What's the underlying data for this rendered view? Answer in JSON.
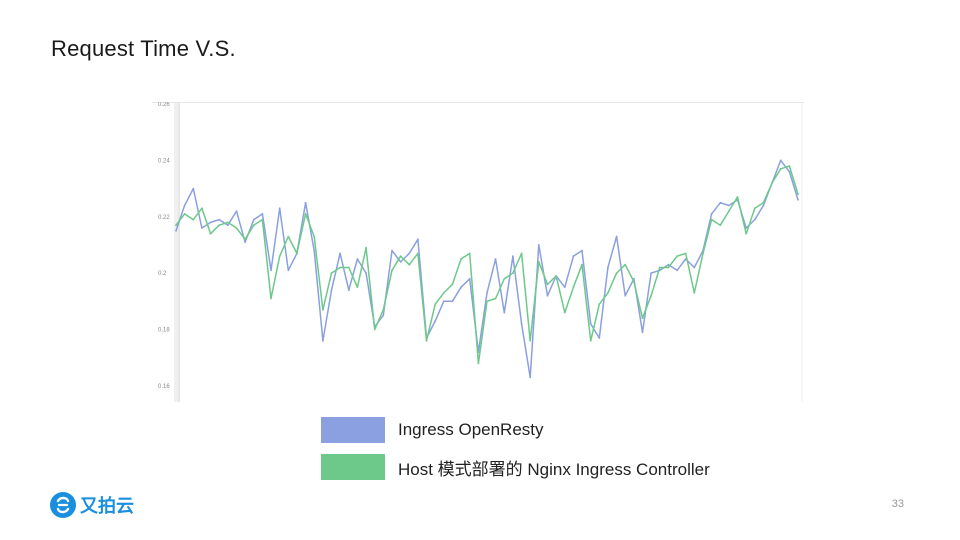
{
  "slide": {
    "title": "Request Time V.S.",
    "page_number": "33",
    "logo_text": "又拍云"
  },
  "colors": {
    "openresty": "#8aa0e0",
    "nginx": "#6cc98a",
    "logo": "#1a8fe0"
  },
  "chart_data": {
    "type": "line",
    "title": "",
    "xlabel": "",
    "ylabel": "",
    "ylim": [
      0.155,
      0.26
    ],
    "yticks": [
      0.16,
      0.18,
      0.2,
      0.22,
      0.24,
      0.26
    ],
    "ytick_labels": [
      "0.16",
      "0.18",
      "0.2",
      "0.22",
      "0.24",
      "0.26"
    ],
    "grid": false,
    "legend": "bottom",
    "series": [
      {
        "name": "Ingress OpenResty",
        "color": "#8aa0e0",
        "values": [
          0.215,
          0.224,
          0.23,
          0.216,
          0.218,
          0.219,
          0.217,
          0.222,
          0.211,
          0.219,
          0.221,
          0.201,
          0.223,
          0.201,
          0.207,
          0.225,
          0.208,
          0.176,
          0.194,
          0.207,
          0.194,
          0.205,
          0.2,
          0.181,
          0.185,
          0.208,
          0.204,
          0.207,
          0.212,
          0.177,
          0.183,
          0.19,
          0.19,
          0.195,
          0.198,
          0.172,
          0.193,
          0.205,
          0.186,
          0.206,
          0.182,
          0.163,
          0.21,
          0.192,
          0.199,
          0.195,
          0.206,
          0.208,
          0.182,
          0.177,
          0.202,
          0.213,
          0.192,
          0.198,
          0.179,
          0.2,
          0.201,
          0.203,
          0.201,
          0.205,
          0.202,
          0.208,
          0.221,
          0.225,
          0.224,
          0.226,
          0.216,
          0.219,
          0.224,
          0.232,
          0.24,
          0.236,
          0.226
        ]
      },
      {
        "name": "Host 模式部署的 Nginx Ingress Controller",
        "color": "#6cc98a",
        "values": [
          0.217,
          0.221,
          0.219,
          0.223,
          0.214,
          0.217,
          0.218,
          0.216,
          0.212,
          0.217,
          0.219,
          0.191,
          0.206,
          0.213,
          0.207,
          0.221,
          0.213,
          0.187,
          0.2,
          0.202,
          0.202,
          0.195,
          0.209,
          0.18,
          0.187,
          0.201,
          0.206,
          0.203,
          0.207,
          0.176,
          0.189,
          0.193,
          0.196,
          0.205,
          0.207,
          0.168,
          0.19,
          0.191,
          0.198,
          0.2,
          0.207,
          0.176,
          0.204,
          0.196,
          0.199,
          0.186,
          0.195,
          0.203,
          0.176,
          0.189,
          0.193,
          0.2,
          0.203,
          0.197,
          0.184,
          0.192,
          0.202,
          0.202,
          0.206,
          0.207,
          0.193,
          0.207,
          0.219,
          0.217,
          0.222,
          0.227,
          0.214,
          0.223,
          0.225,
          0.232,
          0.237,
          0.238,
          0.228
        ]
      }
    ]
  }
}
